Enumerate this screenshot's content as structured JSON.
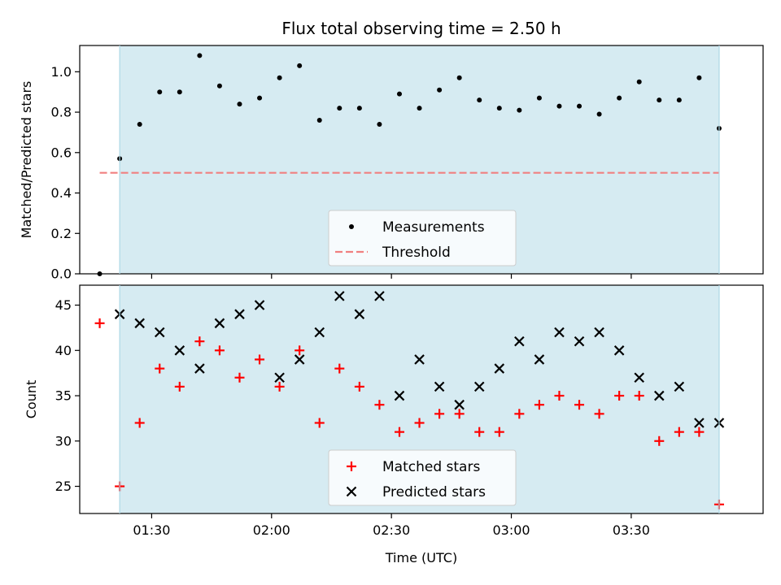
{
  "chart_data": [
    {
      "type": "scatter",
      "title": "Flux total observing time = 2.50 h",
      "xlabel": "",
      "ylabel": "Matched/Predicted stars",
      "ylim": [
        0,
        1.13
      ],
      "yticks": [
        "0.0",
        "0.2",
        "0.4",
        "0.6",
        "0.8",
        "1.0"
      ],
      "xlim": [
        "01:12",
        "04:03"
      ],
      "grid": false,
      "legend_position": "lower-center",
      "highlight_span": [
        "01:22",
        "03:52"
      ],
      "highlight_color": "#add8e6",
      "series": [
        {
          "name": "Measurements",
          "marker": "dot",
          "color": "#000000",
          "x": [
            "01:17",
            "01:22",
            "01:27",
            "01:32",
            "01:37",
            "01:42",
            "01:47",
            "01:52",
            "01:57",
            "02:02",
            "02:07",
            "02:12",
            "02:17",
            "02:22",
            "02:27",
            "02:32",
            "02:37",
            "02:42",
            "02:47",
            "02:52",
            "02:57",
            "03:02",
            "03:07",
            "03:12",
            "03:17",
            "03:22",
            "03:27",
            "03:32",
            "03:37",
            "03:42",
            "03:47",
            "03:52"
          ],
          "values": [
            0.0,
            0.57,
            0.74,
            0.9,
            0.9,
            1.08,
            0.93,
            0.84,
            0.87,
            0.97,
            1.03,
            0.76,
            0.82,
            0.82,
            0.74,
            0.89,
            0.82,
            0.91,
            0.97,
            0.86,
            0.82,
            0.81,
            0.87,
            0.83,
            0.83,
            0.79,
            0.87,
            0.95,
            0.86,
            0.86,
            0.97,
            0.72
          ]
        },
        {
          "name": "Threshold",
          "marker": "dashed-line",
          "color": "#f08080",
          "x": [
            "01:17",
            "03:52"
          ],
          "values": [
            0.5,
            0.5
          ]
        }
      ]
    },
    {
      "type": "scatter",
      "title": "",
      "xlabel": "Time (UTC)",
      "ylabel": "Count",
      "ylim": [
        22,
        47.2
      ],
      "yticks": [
        "25",
        "30",
        "35",
        "40",
        "45"
      ],
      "xlim": [
        "01:12",
        "04:03"
      ],
      "xticks": [
        "01:30",
        "02:00",
        "02:30",
        "03:00",
        "03:30"
      ],
      "grid": false,
      "legend_position": "lower-center",
      "highlight_span": [
        "01:22",
        "03:52"
      ],
      "highlight_color": "#add8e6",
      "series": [
        {
          "name": "Matched stars",
          "marker": "plus",
          "color": "#ff0000",
          "x": [
            "01:17",
            "01:22",
            "01:27",
            "01:32",
            "01:37",
            "01:42",
            "01:47",
            "01:52",
            "01:57",
            "02:02",
            "02:07",
            "02:12",
            "02:17",
            "02:22",
            "02:27",
            "02:32",
            "02:37",
            "02:42",
            "02:47",
            "02:52",
            "02:57",
            "03:02",
            "03:07",
            "03:12",
            "03:17",
            "03:22",
            "03:27",
            "03:32",
            "03:37",
            "03:42",
            "03:47",
            "03:52"
          ],
          "values": [
            43,
            25,
            32,
            38,
            36,
            41,
            40,
            37,
            39,
            36,
            40,
            32,
            38,
            36,
            34,
            31,
            32,
            33,
            33,
            31,
            31,
            33,
            34,
            35,
            34,
            33,
            35,
            35,
            30,
            31,
            31,
            23
          ]
        },
        {
          "name": "Predicted stars",
          "marker": "x",
          "color": "#000000",
          "x": [
            "01:22",
            "01:27",
            "01:32",
            "01:37",
            "01:42",
            "01:47",
            "01:52",
            "01:57",
            "02:02",
            "02:07",
            "02:12",
            "02:17",
            "02:22",
            "02:27",
            "02:32",
            "02:37",
            "02:42",
            "02:47",
            "02:52",
            "02:57",
            "03:02",
            "03:07",
            "03:12",
            "03:17",
            "03:22",
            "03:27",
            "03:32",
            "03:37",
            "03:42",
            "03:47",
            "03:52"
          ],
          "values": [
            44,
            43,
            42,
            40,
            38,
            43,
            44,
            45,
            37,
            39,
            42,
            46,
            44,
            46,
            35,
            39,
            36,
            34,
            36,
            38,
            41,
            39,
            42,
            41,
            42,
            40,
            37,
            35,
            36,
            32,
            32
          ]
        }
      ]
    }
  ]
}
